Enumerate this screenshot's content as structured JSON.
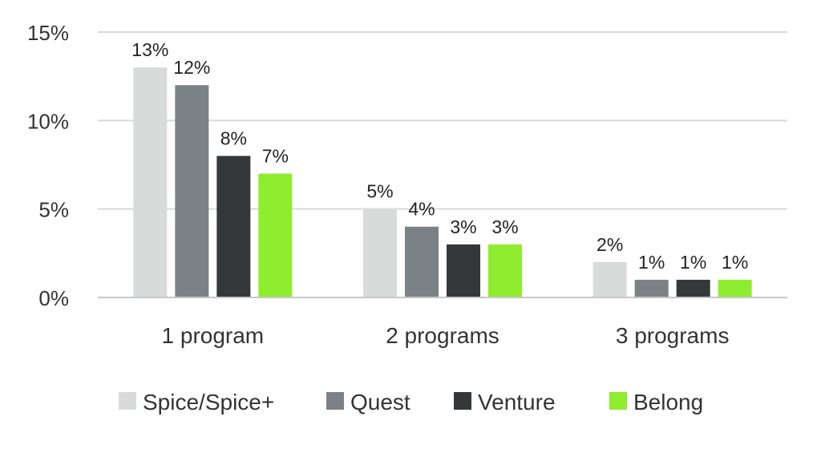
{
  "chart_data": {
    "type": "bar",
    "categories": [
      "1 program",
      "2 programs",
      "3 programs"
    ],
    "series": [
      {
        "name": "Spice/Spice+",
        "color": "#d9dbdb",
        "values": [
          13,
          5,
          2
        ],
        "labels": [
          "13%",
          "5%",
          "2%"
        ]
      },
      {
        "name": "Quest",
        "color": "#7b8285",
        "values": [
          12,
          4,
          1
        ],
        "labels": [
          "12%",
          "4%",
          "1%"
        ]
      },
      {
        "name": "Venture",
        "color": "#35383a",
        "values": [
          8,
          3,
          1
        ],
        "labels": [
          "8%",
          "3%",
          "1%"
        ]
      },
      {
        "name": "Belong",
        "color": "#8eed2f",
        "values": [
          7,
          3,
          1
        ],
        "labels": [
          "7%",
          "3%",
          "1%"
        ]
      }
    ],
    "yticks": [
      {
        "value": 0,
        "label": "0%"
      },
      {
        "value": 5,
        "label": "5%"
      },
      {
        "value": 10,
        "label": "10%"
      },
      {
        "value": 15,
        "label": "15%"
      }
    ],
    "ylim": [
      0,
      15
    ],
    "grid": true,
    "legend": "bottom",
    "title": "",
    "xlabel": "",
    "ylabel": ""
  }
}
